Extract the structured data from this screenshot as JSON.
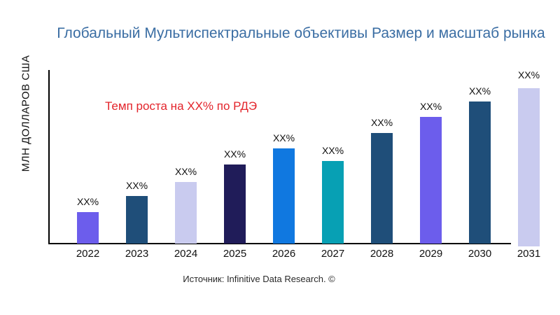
{
  "chart_data": {
    "type": "bar",
    "title": "Глобальный Мультиспектральные объективы Размер и масштаб рынка",
    "title_color": "#3A6DA3",
    "ylabel": "МЛН ДОЛЛАРОВ США",
    "annotation": {
      "text": "Темп роста на XX% по РДЭ",
      "color": "#E3242B"
    },
    "source": "Источник: Infinitive Data Research. ©",
    "categories": [
      "2022",
      "2023",
      "2024",
      "2025",
      "2026",
      "2027",
      "2028",
      "2029",
      "2030",
      "2031"
    ],
    "values": [
      20,
      30,
      39,
      50,
      60,
      52,
      70,
      80,
      90,
      100
    ],
    "bar_labels": [
      "XX%",
      "XX%",
      "XX%",
      "XX%",
      "XX%",
      "XX%",
      "XX%",
      "XX%",
      "XX%",
      "XX%"
    ],
    "bar_colors": [
      "#6C5DEC",
      "#1F4E79",
      "#C9CBEF",
      "#201C59",
      "#1078E0",
      "#07A0B4",
      "#1F4E79",
      "#6C5DEC",
      "#1F4E79",
      "#C9CBEF"
    ],
    "axis_color": "#000000",
    "ylim": [
      0,
      100
    ],
    "grid": false,
    "legend": false
  }
}
